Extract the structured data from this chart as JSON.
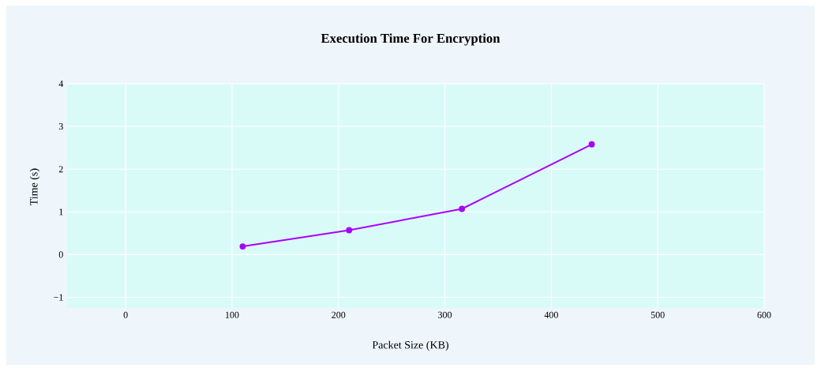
{
  "chart_data": {
    "type": "line",
    "title": "Execution Time For Encryption",
    "xlabel": "Packet Size (KB)",
    "ylabel": "Time (s)",
    "x": [
      110,
      210,
      316,
      438
    ],
    "series": [
      {
        "color": "#aa00ff",
        "values": [
          0.19,
          0.57,
          1.07,
          2.58
        ]
      }
    ],
    "xlim": [
      -55,
      600
    ],
    "ylim": [
      -1.25,
      4
    ],
    "xticks": [
      0,
      100,
      200,
      300,
      400,
      500,
      600
    ],
    "yticks": [
      {
        "value": -1,
        "label": "−1"
      },
      0,
      1,
      2,
      3,
      4
    ],
    "grid": true,
    "marker": "circle",
    "line_style": "solid"
  }
}
